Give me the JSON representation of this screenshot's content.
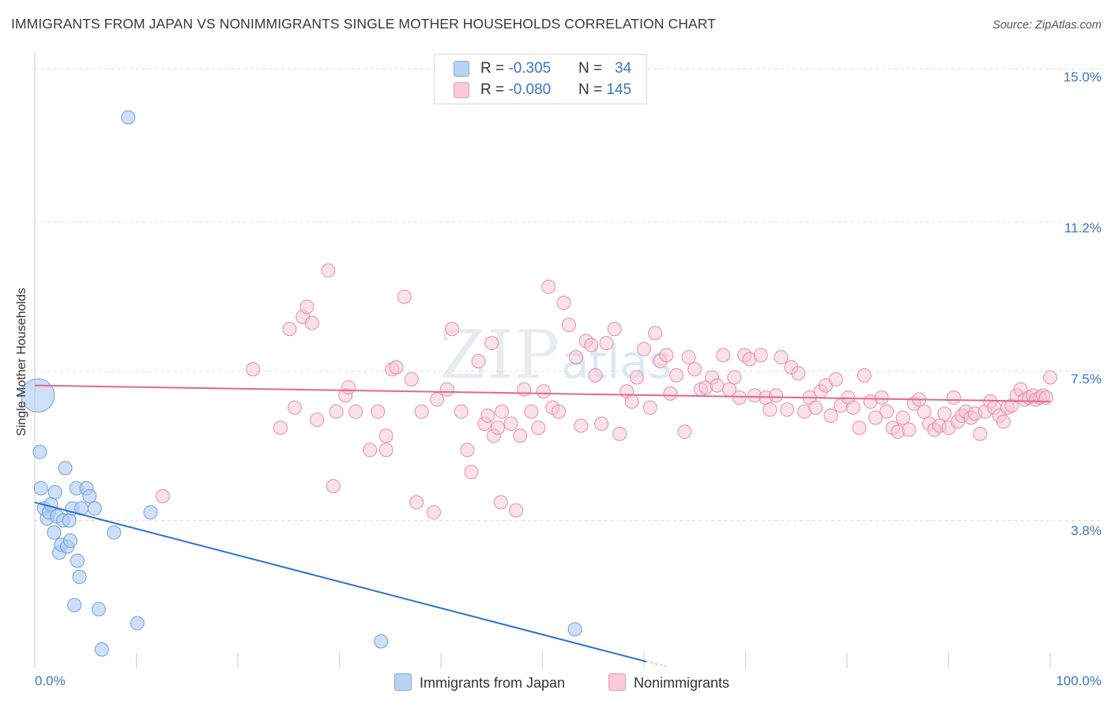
{
  "header": {
    "title": "IMMIGRANTS FROM JAPAN VS NONIMMIGRANTS SINGLE MOTHER HOUSEHOLDS CORRELATION CHART",
    "source": "Source: ZipAtlas.com"
  },
  "watermark": {
    "zip": "ZIP",
    "atlas": "atlas"
  },
  "legend_top": {
    "rows": [
      {
        "r_label": "R = ",
        "r_value": "-0.305",
        "n_label": "N = ",
        "n_value": "34"
      },
      {
        "r_label": "R = ",
        "r_value": "-0.080",
        "n_label": "N = ",
        "n_value": "145"
      }
    ]
  },
  "colors": {
    "japan_fill": "#aecbf2",
    "japan_stroke": "#6f9fdc",
    "japan_line": "#2f72d0",
    "nonimm_fill": "#f7c3d3",
    "nonimm_stroke": "#e58fab",
    "nonimm_line": "#e0698f",
    "tick_label": "#3a74c8",
    "grid": "#dddddd"
  },
  "chart_data": {
    "type": "scatter",
    "title": "IMMIGRANTS FROM JAPAN VS NONIMMIGRANTS SINGLE MOTHER HOUSEHOLDS CORRELATION CHART",
    "xlabel": "",
    "ylabel": "Single Mother Households",
    "x_tick_labels": [
      "0.0%",
      "100.0%"
    ],
    "y_tick_labels": [
      "3.8%",
      "7.5%",
      "11.2%",
      "15.0%"
    ],
    "y_ticks": [
      3.8,
      7.5,
      11.2,
      15.0
    ],
    "xlim": [
      0,
      100
    ],
    "ylim": [
      0.3,
      15.3
    ],
    "grid": true,
    "legend_placement": "bottom",
    "series": [
      {
        "name": "Immigrants from Japan",
        "r": -0.305,
        "n": 34,
        "trend": {
          "x": [
            0.0,
            60.2
          ],
          "y": [
            4.25,
            0.3
          ]
        },
        "points": [
          {
            "x": 0.3,
            "y": 6.9,
            "big": true
          },
          {
            "x": 0.5,
            "y": 5.5
          },
          {
            "x": 0.6,
            "y": 4.6
          },
          {
            "x": 0.9,
            "y": 4.1
          },
          {
            "x": 1.2,
            "y": 3.85
          },
          {
            "x": 1.4,
            "y": 4.0
          },
          {
            "x": 1.6,
            "y": 4.2
          },
          {
            "x": 1.9,
            "y": 3.5
          },
          {
            "x": 2.0,
            "y": 4.5
          },
          {
            "x": 2.2,
            "y": 3.9
          },
          {
            "x": 2.4,
            "y": 3.0
          },
          {
            "x": 2.6,
            "y": 3.2
          },
          {
            "x": 2.8,
            "y": 3.8
          },
          {
            "x": 3.0,
            "y": 5.1
          },
          {
            "x": 3.2,
            "y": 3.15
          },
          {
            "x": 3.4,
            "y": 3.8
          },
          {
            "x": 3.5,
            "y": 3.3
          },
          {
            "x": 3.7,
            "y": 4.1
          },
          {
            "x": 3.9,
            "y": 1.7
          },
          {
            "x": 4.1,
            "y": 4.6
          },
          {
            "x": 4.2,
            "y": 2.8
          },
          {
            "x": 4.4,
            "y": 2.4
          },
          {
            "x": 4.6,
            "y": 4.1
          },
          {
            "x": 5.1,
            "y": 4.6
          },
          {
            "x": 5.4,
            "y": 4.4
          },
          {
            "x": 5.9,
            "y": 4.1
          },
          {
            "x": 6.3,
            "y": 1.6
          },
          {
            "x": 6.6,
            "y": 0.6
          },
          {
            "x": 7.8,
            "y": 3.5
          },
          {
            "x": 9.2,
            "y": 13.8
          },
          {
            "x": 10.1,
            "y": 1.25
          },
          {
            "x": 11.4,
            "y": 4.0
          },
          {
            "x": 34.1,
            "y": 0.8
          },
          {
            "x": 53.2,
            "y": 1.1
          }
        ]
      },
      {
        "name": "Nonimmigrants",
        "r": -0.08,
        "n": 145,
        "trend": {
          "x": [
            0.0,
            100.0
          ],
          "y": [
            7.15,
            6.75
          ]
        },
        "points": [
          {
            "x": 12.6,
            "y": 4.4
          },
          {
            "x": 21.5,
            "y": 7.55
          },
          {
            "x": 24.2,
            "y": 6.1
          },
          {
            "x": 25.1,
            "y": 8.55
          },
          {
            "x": 25.6,
            "y": 6.6
          },
          {
            "x": 26.4,
            "y": 8.85
          },
          {
            "x": 26.8,
            "y": 9.1
          },
          {
            "x": 27.3,
            "y": 8.7
          },
          {
            "x": 27.8,
            "y": 6.3
          },
          {
            "x": 28.9,
            "y": 10.0
          },
          {
            "x": 29.4,
            "y": 4.65
          },
          {
            "x": 29.7,
            "y": 6.5
          },
          {
            "x": 30.6,
            "y": 6.9
          },
          {
            "x": 30.9,
            "y": 7.1
          },
          {
            "x": 31.6,
            "y": 6.5
          },
          {
            "x": 33.0,
            "y": 5.55
          },
          {
            "x": 33.8,
            "y": 6.5
          },
          {
            "x": 34.6,
            "y": 5.9
          },
          {
            "x": 34.6,
            "y": 5.55
          },
          {
            "x": 35.2,
            "y": 7.55
          },
          {
            "x": 35.6,
            "y": 7.6
          },
          {
            "x": 36.4,
            "y": 9.35
          },
          {
            "x": 37.1,
            "y": 7.3
          },
          {
            "x": 37.6,
            "y": 4.25
          },
          {
            "x": 38.1,
            "y": 6.5
          },
          {
            "x": 39.3,
            "y": 4.0
          },
          {
            "x": 39.6,
            "y": 6.8
          },
          {
            "x": 40.6,
            "y": 7.05
          },
          {
            "x": 41.1,
            "y": 8.55
          },
          {
            "x": 42.0,
            "y": 6.5
          },
          {
            "x": 42.6,
            "y": 5.55
          },
          {
            "x": 43.0,
            "y": 5.0
          },
          {
            "x": 43.7,
            "y": 7.75
          },
          {
            "x": 44.3,
            "y": 6.2
          },
          {
            "x": 44.6,
            "y": 6.4
          },
          {
            "x": 45.0,
            "y": 8.2
          },
          {
            "x": 45.2,
            "y": 5.9
          },
          {
            "x": 45.6,
            "y": 6.1
          },
          {
            "x": 45.9,
            "y": 4.25
          },
          {
            "x": 46.0,
            "y": 6.5
          },
          {
            "x": 46.9,
            "y": 6.2
          },
          {
            "x": 47.4,
            "y": 4.05
          },
          {
            "x": 47.8,
            "y": 5.9
          },
          {
            "x": 48.2,
            "y": 7.05
          },
          {
            "x": 48.9,
            "y": 6.5
          },
          {
            "x": 49.6,
            "y": 6.1
          },
          {
            "x": 50.1,
            "y": 7.0
          },
          {
            "x": 50.6,
            "y": 9.6
          },
          {
            "x": 51.0,
            "y": 6.6
          },
          {
            "x": 51.6,
            "y": 6.5
          },
          {
            "x": 52.1,
            "y": 9.2
          },
          {
            "x": 52.6,
            "y": 8.65
          },
          {
            "x": 53.3,
            "y": 7.85
          },
          {
            "x": 53.8,
            "y": 6.15
          },
          {
            "x": 54.3,
            "y": 8.25
          },
          {
            "x": 54.8,
            "y": 8.15
          },
          {
            "x": 55.2,
            "y": 7.4
          },
          {
            "x": 55.8,
            "y": 6.2
          },
          {
            "x": 56.3,
            "y": 8.2
          },
          {
            "x": 57.1,
            "y": 8.55
          },
          {
            "x": 57.6,
            "y": 5.95
          },
          {
            "x": 58.3,
            "y": 7.0
          },
          {
            "x": 58.8,
            "y": 6.75
          },
          {
            "x": 59.3,
            "y": 7.35
          },
          {
            "x": 60.0,
            "y": 8.05
          },
          {
            "x": 60.6,
            "y": 6.6
          },
          {
            "x": 61.1,
            "y": 8.45
          },
          {
            "x": 61.6,
            "y": 7.75
          },
          {
            "x": 62.2,
            "y": 7.9
          },
          {
            "x": 62.6,
            "y": 6.95
          },
          {
            "x": 63.2,
            "y": 7.4
          },
          {
            "x": 64.0,
            "y": 6.0
          },
          {
            "x": 64.4,
            "y": 7.85
          },
          {
            "x": 65.0,
            "y": 7.55
          },
          {
            "x": 65.6,
            "y": 7.05
          },
          {
            "x": 66.1,
            "y": 7.1
          },
          {
            "x": 66.7,
            "y": 7.35
          },
          {
            "x": 67.2,
            "y": 7.15
          },
          {
            "x": 67.8,
            "y": 7.9
          },
          {
            "x": 68.4,
            "y": 7.05
          },
          {
            "x": 68.9,
            "y": 7.35
          },
          {
            "x": 69.4,
            "y": 6.85
          },
          {
            "x": 69.9,
            "y": 7.9
          },
          {
            "x": 70.4,
            "y": 7.8
          },
          {
            "x": 70.9,
            "y": 6.9
          },
          {
            "x": 71.5,
            "y": 7.9
          },
          {
            "x": 72.0,
            "y": 6.85
          },
          {
            "x": 72.4,
            "y": 6.55
          },
          {
            "x": 73.0,
            "y": 6.9
          },
          {
            "x": 73.5,
            "y": 7.85
          },
          {
            "x": 74.1,
            "y": 6.55
          },
          {
            "x": 74.5,
            "y": 7.6
          },
          {
            "x": 75.2,
            "y": 7.45
          },
          {
            "x": 75.8,
            "y": 6.5
          },
          {
            "x": 76.3,
            "y": 6.85
          },
          {
            "x": 76.9,
            "y": 6.6
          },
          {
            "x": 77.4,
            "y": 7.0
          },
          {
            "x": 77.9,
            "y": 7.15
          },
          {
            "x": 78.4,
            "y": 6.4
          },
          {
            "x": 78.9,
            "y": 7.3
          },
          {
            "x": 79.4,
            "y": 6.65
          },
          {
            "x": 80.1,
            "y": 6.85
          },
          {
            "x": 80.6,
            "y": 6.6
          },
          {
            "x": 81.2,
            "y": 6.1
          },
          {
            "x": 81.7,
            "y": 7.4
          },
          {
            "x": 82.3,
            "y": 6.75
          },
          {
            "x": 82.8,
            "y": 6.35
          },
          {
            "x": 83.4,
            "y": 6.85
          },
          {
            "x": 83.9,
            "y": 6.5
          },
          {
            "x": 84.5,
            "y": 6.1
          },
          {
            "x": 85.0,
            "y": 6.0
          },
          {
            "x": 85.5,
            "y": 6.35
          },
          {
            "x": 86.1,
            "y": 6.05
          },
          {
            "x": 86.6,
            "y": 6.7
          },
          {
            "x": 87.1,
            "y": 6.8
          },
          {
            "x": 87.6,
            "y": 6.5
          },
          {
            "x": 88.1,
            "y": 6.2
          },
          {
            "x": 88.6,
            "y": 6.05
          },
          {
            "x": 89.1,
            "y": 6.15
          },
          {
            "x": 89.6,
            "y": 6.45
          },
          {
            "x": 90.0,
            "y": 6.1
          },
          {
            "x": 90.5,
            "y": 6.85
          },
          {
            "x": 90.9,
            "y": 6.25
          },
          {
            "x": 91.3,
            "y": 6.4
          },
          {
            "x": 91.7,
            "y": 6.5
          },
          {
            "x": 92.2,
            "y": 6.35
          },
          {
            "x": 92.6,
            "y": 6.45
          },
          {
            "x": 93.1,
            "y": 5.95
          },
          {
            "x": 93.6,
            "y": 6.5
          },
          {
            "x": 94.1,
            "y": 6.75
          },
          {
            "x": 94.5,
            "y": 6.6
          },
          {
            "x": 95.0,
            "y": 6.4
          },
          {
            "x": 95.4,
            "y": 6.25
          },
          {
            "x": 95.8,
            "y": 6.6
          },
          {
            "x": 96.2,
            "y": 6.65
          },
          {
            "x": 96.7,
            "y": 6.9
          },
          {
            "x": 97.1,
            "y": 7.05
          },
          {
            "x": 97.5,
            "y": 6.8
          },
          {
            "x": 97.9,
            "y": 6.85
          },
          {
            "x": 98.3,
            "y": 6.9
          },
          {
            "x": 98.6,
            "y": 6.8
          },
          {
            "x": 99.0,
            "y": 6.85
          },
          {
            "x": 99.3,
            "y": 6.9
          },
          {
            "x": 99.6,
            "y": 6.85
          },
          {
            "x": 100.0,
            "y": 7.35
          }
        ]
      }
    ]
  }
}
